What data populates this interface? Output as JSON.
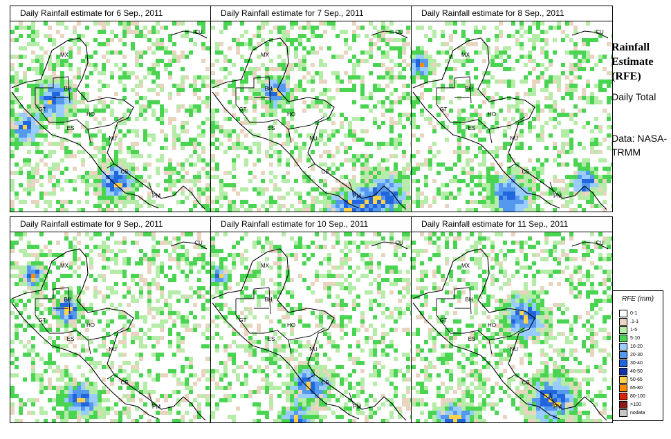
{
  "panels": [
    {
      "title": "Daily Rainfall estimate for  6 Sep., 2011"
    },
    {
      "title": "Daily Rainfall estimate for  7 Sep., 2011"
    },
    {
      "title": "Daily Rainfall estimate for  8 Sep., 2011"
    },
    {
      "title": "Daily Rainfall estimate for  9 Sep., 2011"
    },
    {
      "title": "Daily Rainfall estimate for  10 Sep., 2011"
    },
    {
      "title": "Daily Rainfall estimate for  11 Sep., 2011"
    }
  ],
  "country_labels": [
    "CU",
    "MX",
    "BH",
    "GT",
    "HO",
    "ES",
    "NU",
    "CS",
    "PM"
  ],
  "side": {
    "title": "Rainfall Estimate (RFE)",
    "subtitle": "Daily Total",
    "source": "Data: NASA-TRMM"
  },
  "legend": {
    "title": "RFE (mm)",
    "items": [
      {
        "label": "0-1",
        "color": "#ffffff"
      },
      {
        "label": ".1-1",
        "color": "#e8d5bf"
      },
      {
        "label": "1-5",
        "color": "#b5eca7"
      },
      {
        "label": "5-10",
        "color": "#49d552"
      },
      {
        "label": "10-20",
        "color": "#99ccff"
      },
      {
        "label": "20-30",
        "color": "#5599ee"
      },
      {
        "label": "30-40",
        "color": "#2266dd"
      },
      {
        "label": "40-50",
        "color": "#1133aa"
      },
      {
        "label": "50-65",
        "color": "#ffd24a"
      },
      {
        "label": "65-80",
        "color": "#ff8c00"
      },
      {
        "label": "80-100",
        "color": "#dd2200"
      },
      {
        "label": ">100",
        "color": "#8b1a1a"
      },
      {
        "label": "nodata",
        "color": "#c8c8c8"
      }
    ]
  }
}
